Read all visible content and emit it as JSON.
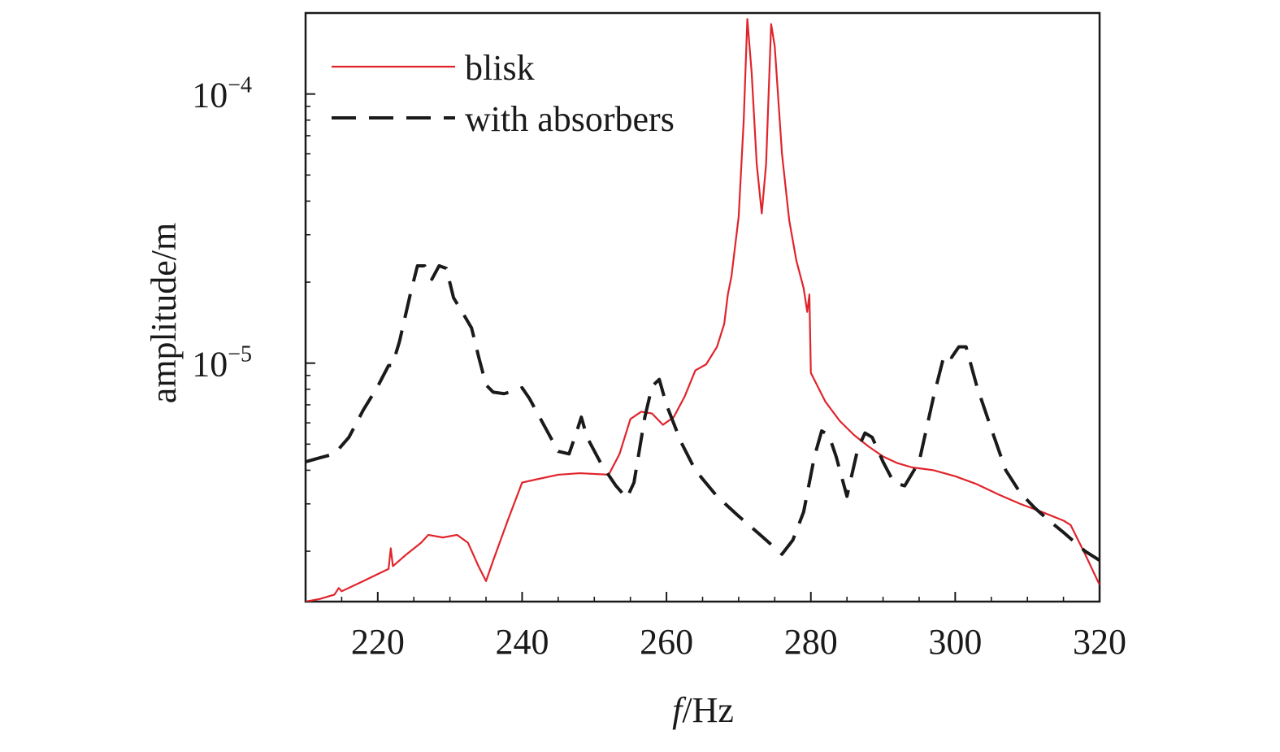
{
  "chart_data": {
    "type": "line",
    "xlabel_italic": "f",
    "xlabel_unit": "/Hz",
    "ylabel": "amplitude/m",
    "xlim": [
      210,
      320
    ],
    "ylim": [
      1.3e-06,
      0.0002
    ],
    "y_scale": "log",
    "x_ticks": [
      "220",
      "240",
      "260",
      "280",
      "300",
      "320"
    ],
    "y_ticks": [
      {
        "base": "10",
        "exp": "−4",
        "value": 0.0001
      },
      {
        "base": "10",
        "exp": "−5",
        "value": 1e-05
      }
    ],
    "grid": false,
    "legend_position": "top-left",
    "series": [
      {
        "name": "blisk",
        "color": "#e0242b",
        "style": "solid",
        "points": [
          [
            210,
            1.3e-06
          ],
          [
            212,
            1.33e-06
          ],
          [
            214,
            1.38e-06
          ],
          [
            214.6,
            1.46e-06
          ],
          [
            215,
            1.42e-06
          ],
          [
            218,
            1.55e-06
          ],
          [
            221.5,
            1.72e-06
          ],
          [
            221.8,
            2.05e-06
          ],
          [
            222.1,
            1.76e-06
          ],
          [
            224,
            1.95e-06
          ],
          [
            226,
            2.15e-06
          ],
          [
            227,
            2.3e-06
          ],
          [
            229,
            2.25e-06
          ],
          [
            231,
            2.3e-06
          ],
          [
            232.5,
            2.15e-06
          ],
          [
            234,
            1.75e-06
          ],
          [
            235,
            1.55e-06
          ],
          [
            236,
            1.85e-06
          ],
          [
            238,
            2.6e-06
          ],
          [
            240,
            3.6e-06
          ],
          [
            242,
            3.7e-06
          ],
          [
            245,
            3.85e-06
          ],
          [
            248,
            3.9e-06
          ],
          [
            252,
            3.85e-06
          ],
          [
            253.5,
            4.6e-06
          ],
          [
            255,
            6.2e-06
          ],
          [
            256.5,
            6.6e-06
          ],
          [
            258,
            6.5e-06
          ],
          [
            259.5,
            5.9e-06
          ],
          [
            261,
            6.3e-06
          ],
          [
            262.5,
            7.5e-06
          ],
          [
            264,
            9.4e-06
          ],
          [
            265.5,
            9.9e-06
          ],
          [
            267,
            1.15e-05
          ],
          [
            268,
            1.4e-05
          ],
          [
            268.5,
            1.8e-05
          ],
          [
            269,
            2.1e-05
          ],
          [
            270,
            3.5e-05
          ],
          [
            270.7,
            8e-05
          ],
          [
            271.2,
            0.00019
          ],
          [
            271.8,
            0.00012
          ],
          [
            272.5,
            5.5e-05
          ],
          [
            273.2,
            3.6e-05
          ],
          [
            273.8,
            5.5e-05
          ],
          [
            274.5,
            0.000182
          ],
          [
            275,
            0.00015
          ],
          [
            276,
            6e-05
          ],
          [
            277,
            3.4e-05
          ],
          [
            278,
            2.4e-05
          ],
          [
            279,
            1.9e-05
          ],
          [
            279.5,
            1.55e-05
          ],
          [
            279.8,
            1.8e-05
          ],
          [
            280,
            9.2e-06
          ],
          [
            282,
            7.2e-06
          ],
          [
            284,
            6.1e-06
          ],
          [
            286,
            5.4e-06
          ],
          [
            288,
            4.9e-06
          ],
          [
            290,
            4.5e-06
          ],
          [
            292,
            4.25e-06
          ],
          [
            294,
            4.1e-06
          ],
          [
            297,
            4e-06
          ],
          [
            300,
            3.8e-06
          ],
          [
            303,
            3.55e-06
          ],
          [
            306,
            3.25e-06
          ],
          [
            309,
            3e-06
          ],
          [
            312,
            2.8e-06
          ],
          [
            315,
            2.6e-06
          ],
          [
            316,
            2.5e-06
          ],
          [
            318,
            1.95e-06
          ],
          [
            320,
            1.5e-06
          ]
        ]
      },
      {
        "name": "with absorbers",
        "color": "#1a1a1a",
        "style": "dashed",
        "points": [
          [
            210,
            4.3e-06
          ],
          [
            212,
            4.45e-06
          ],
          [
            214,
            4.6e-06
          ],
          [
            216,
            5.3e-06
          ],
          [
            218,
            6.7e-06
          ],
          [
            220,
            8.2e-06
          ],
          [
            221.5,
            9.8e-06
          ],
          [
            222,
            9.8e-06
          ],
          [
            223,
            1.2e-05
          ],
          [
            224.5,
            1.8e-05
          ],
          [
            225.5,
            2.3e-05
          ],
          [
            226.5,
            2.3e-05
          ],
          [
            227.5,
            2.05e-05
          ],
          [
            228.5,
            2.3e-05
          ],
          [
            229.5,
            2.25e-05
          ],
          [
            230.5,
            1.75e-05
          ],
          [
            232,
            1.5e-05
          ],
          [
            233,
            1.35e-05
          ],
          [
            234,
            1.05e-05
          ],
          [
            235,
            8.3e-06
          ],
          [
            236,
            7.8e-06
          ],
          [
            237.5,
            7.7e-06
          ],
          [
            239,
            7.9e-06
          ],
          [
            240,
            8.1e-06
          ],
          [
            241,
            7.4e-06
          ],
          [
            243,
            5.9e-06
          ],
          [
            245,
            4.7e-06
          ],
          [
            246.5,
            4.6e-06
          ],
          [
            247.5,
            5.5e-06
          ],
          [
            248.2,
            6.3e-06
          ],
          [
            249,
            5.3e-06
          ],
          [
            251,
            4.2e-06
          ],
          [
            253,
            3.5e-06
          ],
          [
            254.5,
            3.15e-06
          ],
          [
            255.5,
            3.6e-06
          ],
          [
            257,
            6.3e-06
          ],
          [
            258,
            8.2e-06
          ],
          [
            259,
            8.7e-06
          ],
          [
            260,
            7e-06
          ],
          [
            262,
            5.1e-06
          ],
          [
            264,
            4e-06
          ],
          [
            267,
            3.2e-06
          ],
          [
            270,
            2.7e-06
          ],
          [
            273,
            2.3e-06
          ],
          [
            276,
            1.95e-06
          ],
          [
            277.5,
            2.2e-06
          ],
          [
            279,
            2.8e-06
          ],
          [
            280.5,
            4.5e-06
          ],
          [
            281.5,
            5.6e-06
          ],
          [
            282.5,
            5.4e-06
          ],
          [
            283.5,
            4.5e-06
          ],
          [
            285,
            3.2e-06
          ],
          [
            286.5,
            4.8e-06
          ],
          [
            287.5,
            5.5e-06
          ],
          [
            288.5,
            5.3e-06
          ],
          [
            290,
            4.3e-06
          ],
          [
            291.5,
            3.6e-06
          ],
          [
            293,
            3.5e-06
          ],
          [
            295,
            4.3e-06
          ],
          [
            297,
            7.5e-06
          ],
          [
            298.5,
            1.08e-05
          ],
          [
            299.5,
            1.05e-05
          ],
          [
            300.5,
            1.15e-05
          ],
          [
            301.5,
            1.15e-05
          ],
          [
            303,
            8.2e-06
          ],
          [
            305,
            5.7e-06
          ],
          [
            307,
            4e-06
          ],
          [
            309,
            3.3e-06
          ],
          [
            311,
            2.9e-06
          ],
          [
            313,
            2.6e-06
          ],
          [
            315,
            2.35e-06
          ],
          [
            318,
            2e-06
          ],
          [
            320,
            1.85e-06
          ]
        ]
      }
    ]
  }
}
